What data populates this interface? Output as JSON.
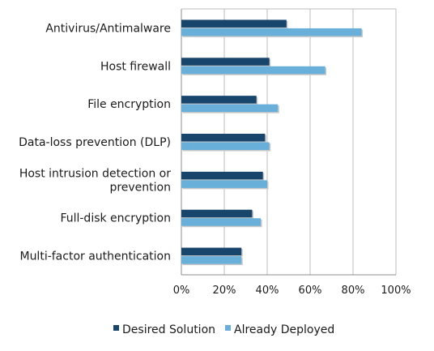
{
  "chart_data": {
    "type": "bar",
    "orientation": "horizontal",
    "categories": [
      "Antivirus/Antimalware",
      "Host firewall",
      "File encryption",
      "Data-loss prevention (DLP)",
      "Host intrusion detection or prevention",
      "Full-disk encryption",
      "Multi-factor authentication"
    ],
    "category_lines": [
      [
        "Antivirus/Antimalware"
      ],
      [
        "Host firewall"
      ],
      [
        "File encryption"
      ],
      [
        "Data-loss prevention (DLP)"
      ],
      [
        "Host intrusion detection or",
        "prevention"
      ],
      [
        "Full-disk encryption"
      ],
      [
        "Multi-factor authentication"
      ]
    ],
    "series": [
      {
        "name": "Desired Solution",
        "color": "#17456b",
        "values": [
          49,
          41,
          35,
          39,
          38,
          33,
          28
        ]
      },
      {
        "name": "Already Deployed",
        "color": "#68afd9",
        "values": [
          84,
          67,
          45,
          41,
          40,
          37,
          28
        ]
      }
    ],
    "xlim": [
      0,
      100
    ],
    "x_ticks": [
      "0%",
      "20%",
      "40%",
      "60%",
      "80%",
      "100%"
    ],
    "grid": "vertical",
    "legend_position": "bottom"
  }
}
